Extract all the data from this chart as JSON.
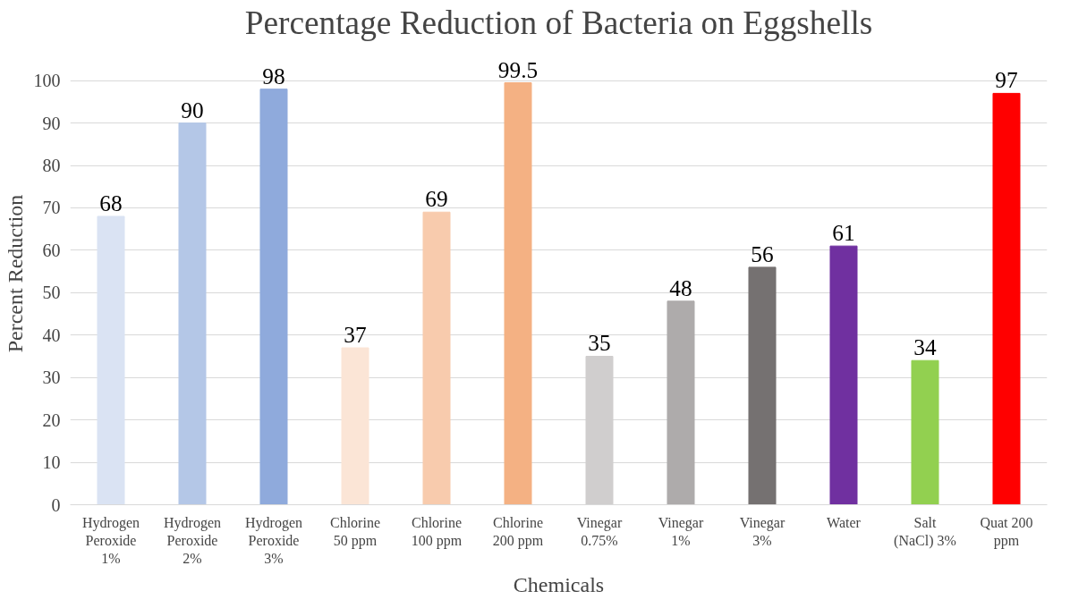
{
  "chart_data": {
    "type": "bar",
    "title": "Percentage Reduction of Bacteria on Eggshells",
    "xlabel": "Chemicals",
    "ylabel": "Percent Reduction",
    "categories": [
      "Hydrogen\nPeroxide\n1%",
      "Hydrogen\nPeroxide\n2%",
      "Hydrogen\nPeroxide\n3%",
      "Chlorine\n50 ppm",
      "Chlorine\n100 ppm",
      "Chlorine\n200 ppm",
      "Vinegar\n0.75%",
      "Vinegar\n1%",
      "Vinegar\n3%",
      "Water",
      "Salt\n(NaCl) 3%",
      "Quat 200\nppm"
    ],
    "values": [
      68,
      90,
      98,
      37,
      69,
      99.5,
      35,
      48,
      56,
      61,
      34,
      97
    ],
    "colors": [
      "#dae3f3",
      "#b4c7e7",
      "#8faadc",
      "#fbe5d6",
      "#f8cbad",
      "#f4b183",
      "#d0cece",
      "#aeabab",
      "#757171",
      "#7030a0",
      "#92d050",
      "#ff0000"
    ],
    "ylim": [
      0,
      100
    ],
    "yticks": [
      0,
      10,
      20,
      30,
      40,
      50,
      60,
      70,
      80,
      90,
      100
    ],
    "grid": "y",
    "data_labels": true
  }
}
